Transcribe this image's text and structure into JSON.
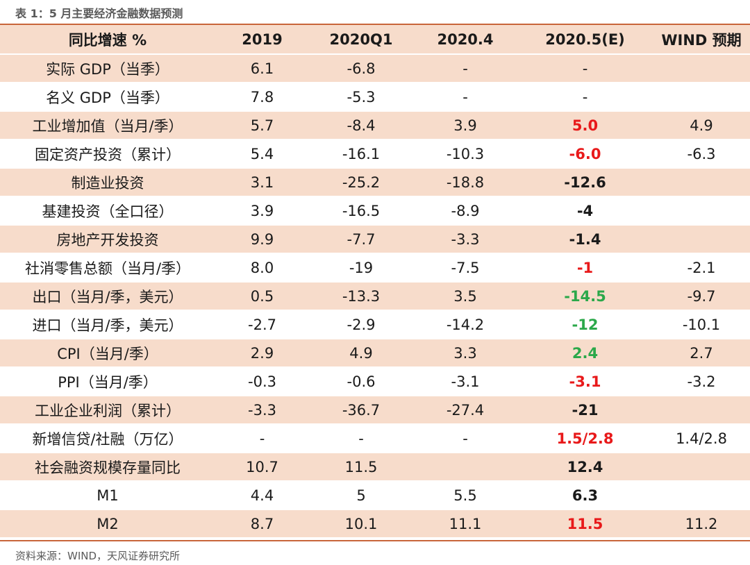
{
  "caption": "表 1：5 月主要经济金融数据预测",
  "source": "资料来源：WIND，天风证券研究所",
  "colors": {
    "red": "#e8191a",
    "green": "#2ba84a",
    "black": "#1a1a1a"
  },
  "header": [
    "同比增速 %",
    "2019",
    "2020Q1",
    "2020.4",
    "2020.5(E)",
    "WIND 预期"
  ],
  "rows": [
    {
      "label": "实际 GDP（当季）",
      "y2019": "6.1",
      "q1": "-6.8",
      "apr": "-",
      "may": "-",
      "may_color": "black",
      "may_bold": false,
      "wind": ""
    },
    {
      "label": "名义 GDP（当季）",
      "y2019": "7.8",
      "q1": "-5.3",
      "apr": "-",
      "may": "-",
      "may_color": "black",
      "may_bold": false,
      "wind": ""
    },
    {
      "label": "工业增加值（当月/季）",
      "y2019": "5.7",
      "q1": "-8.4",
      "apr": "3.9",
      "may": "5.0",
      "may_color": "red",
      "may_bold": true,
      "wind": "4.9"
    },
    {
      "label": "固定资产投资（累计）",
      "y2019": "5.4",
      "q1": "-16.1",
      "apr": "-10.3",
      "may": "-6.0",
      "may_color": "red",
      "may_bold": true,
      "wind": "-6.3"
    },
    {
      "label": "制造业投资",
      "y2019": "3.1",
      "q1": "-25.2",
      "apr": "-18.8",
      "may": "-12.6",
      "may_color": "black",
      "may_bold": true,
      "wind": ""
    },
    {
      "label": "基建投资（全口径）",
      "y2019": "3.9",
      "q1": "-16.5",
      "apr": "-8.9",
      "may": "-4",
      "may_color": "black",
      "may_bold": true,
      "wind": ""
    },
    {
      "label": "房地产开发投资",
      "y2019": "9.9",
      "q1": "-7.7",
      "apr": "-3.3",
      "may": "-1.4",
      "may_color": "black",
      "may_bold": true,
      "wind": ""
    },
    {
      "label": "社消零售总额（当月/季）",
      "y2019": "8.0",
      "q1": "-19",
      "apr": "-7.5",
      "may": "-1",
      "may_color": "red",
      "may_bold": true,
      "wind": "-2.1"
    },
    {
      "label": "出口（当月/季，美元）",
      "y2019": "0.5",
      "q1": "-13.3",
      "apr": "3.5",
      "may": "-14.5",
      "may_color": "green",
      "may_bold": true,
      "wind": "-9.7"
    },
    {
      "label": "进口（当月/季，美元）",
      "y2019": "-2.7",
      "q1": "-2.9",
      "apr": "-14.2",
      "may": "-12",
      "may_color": "green",
      "may_bold": true,
      "wind": "-10.1"
    },
    {
      "label": "CPI（当月/季）",
      "y2019": "2.9",
      "q1": "4.9",
      "apr": "3.3",
      "may": "2.4",
      "may_color": "green",
      "may_bold": true,
      "wind": "2.7"
    },
    {
      "label": "PPI（当月/季）",
      "y2019": "-0.3",
      "q1": "-0.6",
      "apr": "-3.1",
      "may": "-3.1",
      "may_color": "red",
      "may_bold": true,
      "wind": "-3.2"
    },
    {
      "label": "工业企业利润（累计）",
      "y2019": "-3.3",
      "q1": "-36.7",
      "apr": "-27.4",
      "may": "-21",
      "may_color": "black",
      "may_bold": true,
      "wind": ""
    },
    {
      "label": "新增信贷/社融（万亿）",
      "y2019": "-",
      "q1": "-",
      "apr": "-",
      "may": "1.5/2.8",
      "may_color": "red",
      "may_bold": true,
      "wind": "1.4/2.8"
    },
    {
      "label": "社会融资规模存量同比",
      "y2019": "10.7",
      "q1": "11.5",
      "apr": "",
      "may": "12.4",
      "may_color": "black",
      "may_bold": true,
      "wind": ""
    },
    {
      "label": "M1",
      "y2019": "4.4",
      "q1": "5",
      "apr": "5.5",
      "may": "6.3",
      "may_color": "black",
      "may_bold": true,
      "wind": ""
    },
    {
      "label": "M2",
      "y2019": "8.7",
      "q1": "10.1",
      "apr": "11.1",
      "may": "11.5",
      "may_color": "red",
      "may_bold": true,
      "wind": "11.2"
    }
  ]
}
